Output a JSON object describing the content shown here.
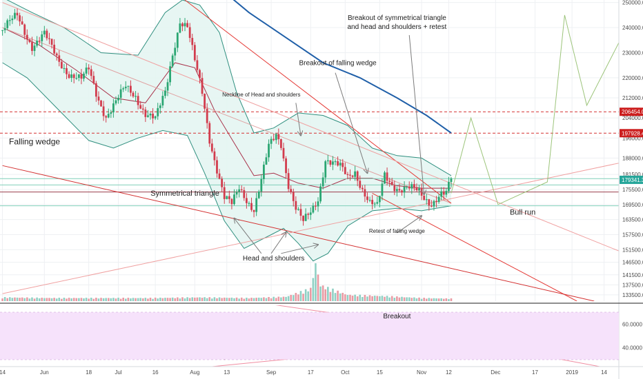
{
  "chart_data": [
    {
      "type": "candlestick",
      "x_axis": {
        "ticks": [
          {
            "label": "14",
            "day": 0
          },
          {
            "label": "Jun",
            "day": 17
          },
          {
            "label": "18",
            "day": 35
          },
          {
            "label": "Jul",
            "day": 47
          },
          {
            "label": "16",
            "day": 62
          },
          {
            "label": "Aug",
            "day": 78
          },
          {
            "label": "13",
            "day": 91
          },
          {
            "label": "Sep",
            "day": 109
          },
          {
            "label": "17",
            "day": 125
          },
          {
            "label": "Oct",
            "day": 139
          },
          {
            "label": "15",
            "day": 153
          },
          {
            "label": "Nov",
            "day": 170
          },
          {
            "label": "12",
            "day": 181
          },
          {
            "label": "Dec",
            "day": 200
          },
          {
            "label": "17",
            "day": 216
          },
          {
            "label": "2019",
            "day": 231
          },
          {
            "label": "14",
            "day": 244
          }
        ],
        "range_days": [
          -1,
          250
        ]
      },
      "y_axis": {
        "tick_labels": [
          "250000.0",
          "240000.0",
          "230000.0",
          "220000.0",
          "212000.0",
          "204000.0",
          "196000.0",
          "188000.0",
          "181500.0",
          "175500.0",
          "169500.0",
          "163500.0",
          "157500.0",
          "151500.0",
          "146500.0",
          "141500.0",
          "137500.0",
          "133500.0"
        ],
        "ylim": [
          131000,
          251000
        ]
      },
      "price_badges": [
        {
          "label": "206454.0",
          "value": 206454,
          "color": "#cc1d1d"
        },
        {
          "label": "197928.4",
          "value": 197928,
          "color": "#cc1d1d"
        },
        {
          "label": "179341.3",
          "value": 179341,
          "color": "#26a69a"
        }
      ],
      "horizontal_levels": [
        {
          "value": 206454,
          "style": "dashed",
          "color": "#d32f2f"
        },
        {
          "value": 197928,
          "style": "dashed",
          "color": "#d32f2f"
        },
        {
          "value": 179800,
          "style": "solid",
          "color": "#7fcfb9"
        },
        {
          "value": 177300,
          "style": "solid",
          "color": "#7fcfb9"
        },
        {
          "value": 174500,
          "style": "solid",
          "color": "#9a3b4a"
        },
        {
          "value": 169000,
          "style": "solid",
          "color": "#7fcfb9"
        }
      ],
      "price_path": [
        [
          0,
          239000
        ],
        [
          6,
          244500
        ],
        [
          12,
          233000
        ],
        [
          17,
          237000
        ],
        [
          22,
          228000
        ],
        [
          27,
          222000
        ],
        [
          32,
          219000
        ],
        [
          35,
          223000
        ],
        [
          38,
          214000
        ],
        [
          42,
          205000
        ],
        [
          46,
          210000
        ],
        [
          50,
          216000
        ],
        [
          54,
          213000
        ],
        [
          58,
          206000
        ],
        [
          62,
          203000
        ],
        [
          66,
          214000
        ],
        [
          69,
          230000
        ],
        [
          72,
          243000
        ],
        [
          75,
          240000
        ],
        [
          78,
          226000
        ],
        [
          81,
          214000
        ],
        [
          84,
          196000
        ],
        [
          87,
          184000
        ],
        [
          90,
          172000
        ],
        [
          93,
          169000
        ],
        [
          96,
          176000
        ],
        [
          99,
          172000
        ],
        [
          102,
          168000
        ],
        [
          105,
          179000
        ],
        [
          108,
          192000
        ],
        [
          111,
          197000
        ],
        [
          113,
          194000
        ],
        [
          116,
          178000
        ],
        [
          119,
          168000
        ],
        [
          122,
          162000
        ],
        [
          125,
          166000
        ],
        [
          128,
          172000
        ],
        [
          131,
          188000
        ],
        [
          134,
          186000
        ],
        [
          137,
          184000
        ],
        [
          140,
          180000
        ],
        [
          143,
          183000
        ],
        [
          146,
          176000
        ],
        [
          149,
          170000
        ],
        [
          152,
          168000
        ],
        [
          155,
          181000
        ],
        [
          158,
          178000
        ],
        [
          161,
          176000
        ],
        [
          164,
          176000
        ],
        [
          167,
          175000
        ],
        [
          169,
          174000
        ],
        [
          171,
          172000
        ],
        [
          174,
          170500
        ],
        [
          176,
          172500
        ],
        [
          178,
          174000
        ],
        [
          180,
          173500
        ],
        [
          182,
          179300
        ]
      ],
      "bollinger_bands": {
        "upper": [
          [
            0,
            252000
          ],
          [
            12,
            246000
          ],
          [
            25,
            240000
          ],
          [
            40,
            230000
          ],
          [
            55,
            229000
          ],
          [
            66,
            246000
          ],
          [
            73,
            251000
          ],
          [
            80,
            249000
          ],
          [
            88,
            238000
          ],
          [
            95,
            214000
          ],
          [
            102,
            198000
          ],
          [
            110,
            200000
          ],
          [
            120,
            206000
          ],
          [
            130,
            205000
          ],
          [
            140,
            201000
          ],
          [
            150,
            192000
          ],
          [
            160,
            189000
          ],
          [
            170,
            188000
          ],
          [
            182,
            181000
          ]
        ],
        "middle": [
          [
            0,
            240000
          ],
          [
            15,
            233000
          ],
          [
            30,
            223000
          ],
          [
            45,
            212000
          ],
          [
            58,
            210000
          ],
          [
            70,
            226000
          ],
          [
            78,
            224000
          ],
          [
            86,
            207000
          ],
          [
            94,
            194000
          ],
          [
            102,
            181000
          ],
          [
            110,
            182000
          ],
          [
            120,
            178000
          ],
          [
            130,
            176000
          ],
          [
            140,
            180000
          ],
          [
            150,
            180000
          ],
          [
            160,
            177000
          ],
          [
            170,
            176000
          ],
          [
            182,
            176000
          ]
        ],
        "lower": [
          [
            0,
            226000
          ],
          [
            10,
            220000
          ],
          [
            22,
            208000
          ],
          [
            35,
            195000
          ],
          [
            45,
            192000
          ],
          [
            55,
            196000
          ],
          [
            65,
            199000
          ],
          [
            75,
            197000
          ],
          [
            82,
            182000
          ],
          [
            90,
            163000
          ],
          [
            98,
            152000
          ],
          [
            106,
            156000
          ],
          [
            114,
            160000
          ],
          [
            120,
            154000
          ],
          [
            126,
            147000
          ],
          [
            132,
            150000
          ],
          [
            140,
            161000
          ],
          [
            150,
            167000
          ],
          [
            160,
            168000
          ],
          [
            170,
            167000
          ],
          [
            182,
            169000
          ]
        ]
      },
      "moving_average": [
        [
          89,
          255000
        ],
        [
          100,
          246000
        ],
        [
          115,
          236000
        ],
        [
          130,
          226000
        ],
        [
          145,
          220000
        ],
        [
          160,
          212000
        ],
        [
          172,
          205000
        ],
        [
          182,
          198000
        ]
      ],
      "trend_lines": [
        {
          "name": "falling-wedge-upper",
          "color": "#e0a0a0",
          "points": [
            [
              0,
              240000
            ],
            [
              182,
              170000
            ]
          ]
        },
        {
          "name": "head-shoulders-neckline",
          "color": "#e53935",
          "points": [
            [
              74,
              251000
            ],
            [
              182,
              170000
            ]
          ]
        },
        {
          "name": "falling-wedge-lower",
          "color": "#e53935",
          "points": [
            [
              150,
              174000
            ],
            [
              233,
              131000
            ]
          ]
        },
        {
          "name": "symmetrical-triangle-upper",
          "color": "#d32f2f",
          "points": [
            [
              0,
              185000
            ],
            [
              240,
              131000
            ]
          ]
        },
        {
          "name": "symmetrical-triangle-lower",
          "color": "#f0a0a0",
          "points": [
            [
              0,
              134000
            ],
            [
              250,
              186000
            ]
          ]
        },
        {
          "name": "descending-resistance",
          "color": "#f0a0a0",
          "points": [
            [
              0,
              250000
            ],
            [
              250,
              151000
            ]
          ]
        }
      ],
      "projection_path": [
        [
          182,
          174000
        ],
        [
          190,
          204000
        ],
        [
          201,
          169500
        ],
        [
          221,
          178500
        ],
        [
          228,
          245000
        ],
        [
          237,
          209000
        ],
        [
          250,
          234000
        ]
      ],
      "volume": {
        "profile": [
          [
            0,
            6
          ],
          [
            20,
            5
          ],
          [
            40,
            5
          ],
          [
            60,
            5
          ],
          [
            80,
            6
          ],
          [
            100,
            5
          ],
          [
            115,
            7
          ],
          [
            125,
            20
          ],
          [
            127,
            60
          ],
          [
            129,
            25
          ],
          [
            140,
            10
          ],
          [
            155,
            8
          ],
          [
            170,
            5
          ],
          [
            182,
            4
          ]
        ],
        "base_value": 131000
      },
      "annotations": [
        {
          "text": "Breakout of symmetrical triangle",
          "day": 160,
          "price": 243000,
          "size": 10
        },
        {
          "text": "and head and shoulders + retest",
          "day": 160,
          "price": 239500,
          "size": 10
        },
        {
          "text": "Breakout of falling wedge",
          "day": 136,
          "price": 225000,
          "size": 10
        },
        {
          "text": "Neckline of Head and shoulders",
          "day": 105,
          "price": 212500,
          "size": 8
        },
        {
          "text": "Falling wedge",
          "day": 13,
          "price": 193500,
          "size": 12
        },
        {
          "text": "Symmetrical triangle",
          "day": 74,
          "price": 173000,
          "size": 11
        },
        {
          "text": "Bull run",
          "day": 211,
          "price": 165500,
          "size": 11,
          "color": "#2e7d32"
        },
        {
          "text": "Retest of falling wedge",
          "day": 160,
          "price": 158200,
          "size": 8
        },
        {
          "text": "Head and shoulders",
          "day": 110,
          "price": 147200,
          "size": 10
        }
      ],
      "arrows": [
        {
          "from": [
            165,
            237000
          ],
          "to": [
            171,
            173500
          ]
        },
        {
          "from": [
            135,
            222000
          ],
          "to": [
            148,
            182000
          ]
        },
        {
          "from": [
            119,
            210000
          ],
          "to": [
            121,
            197000
          ]
        },
        {
          "from": [
            160,
            158200
          ],
          "to": [
            170,
            165000
          ]
        },
        {
          "from": [
            105,
            150000
          ],
          "to": [
            94,
            164000
          ]
        },
        {
          "from": [
            109,
            150000
          ],
          "to": [
            115,
            158500
          ]
        },
        {
          "from": [
            113,
            150000
          ],
          "to": [
            128,
            153500
          ]
        }
      ]
    },
    {
      "type": "line",
      "name": "rsi-pane",
      "y_axis": {
        "tick_labels": [
          "60.0000",
          "40.0000"
        ],
        "ylim": [
          24,
          76
        ]
      },
      "band": [
        30,
        70
      ],
      "series_path": [
        [
          0,
          47
        ],
        [
          5,
          53
        ],
        [
          10,
          44
        ],
        [
          15,
          50
        ],
        [
          20,
          42
        ],
        [
          25,
          52
        ],
        [
          30,
          45
        ],
        [
          35,
          40
        ],
        [
          40,
          50
        ],
        [
          45,
          46
        ],
        [
          50,
          55
        ],
        [
          55,
          51
        ],
        [
          60,
          48
        ],
        [
          66,
          66
        ],
        [
          70,
          62
        ],
        [
          75,
          59
        ],
        [
          80,
          48
        ],
        [
          85,
          36
        ],
        [
          90,
          30
        ],
        [
          94,
          34
        ],
        [
          97,
          44
        ],
        [
          100,
          40
        ],
        [
          103,
          48
        ],
        [
          106,
          55
        ],
        [
          109,
          60
        ],
        [
          112,
          58
        ],
        [
          115,
          46
        ],
        [
          118,
          38
        ],
        [
          121,
          34
        ],
        [
          124,
          41
        ],
        [
          127,
          55
        ],
        [
          130,
          64
        ],
        [
          133,
          62
        ],
        [
          137,
          59
        ],
        [
          140,
          56
        ],
        [
          143,
          63
        ],
        [
          146,
          52
        ],
        [
          149,
          43
        ],
        [
          152,
          47
        ],
        [
          155,
          57
        ],
        [
          158,
          53
        ],
        [
          161,
          52
        ],
        [
          164,
          51
        ],
        [
          167,
          49
        ],
        [
          170,
          45
        ],
        [
          173,
          47
        ],
        [
          176,
          50
        ],
        [
          180,
          55
        ],
        [
          182,
          66
        ]
      ],
      "trend_lines": [
        {
          "points": [
            [
              105,
              78
            ],
            [
              182,
              55
            ]
          ],
          "color": "#f08ca0"
        },
        {
          "points": [
            [
              85,
              24
            ],
            [
              250,
              58
            ]
          ],
          "color": "#f08ca0"
        },
        {
          "points": [
            [
              165,
              54
            ],
            [
              250,
              21
            ]
          ],
          "color": "#f08ca0"
        }
      ],
      "annotations": [
        {
          "text": "Breakout",
          "day": 160,
          "value": 65,
          "color": "#2e7d32"
        }
      ]
    }
  ]
}
